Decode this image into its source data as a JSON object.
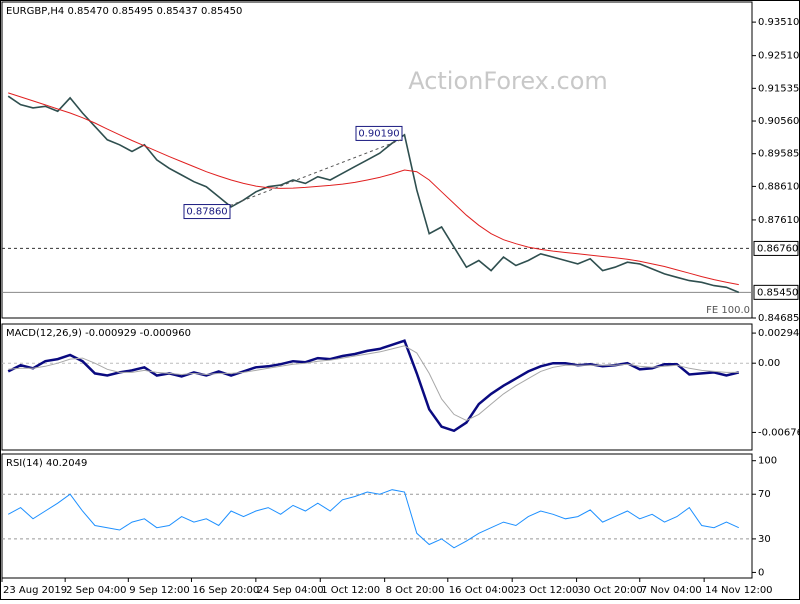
{
  "chart_data": [
    {
      "type": "line",
      "title": "EURGBP,H4  0.85470 0.85495 0.85437 0.85450",
      "watermark": "ActionForex.com",
      "ylim": [
        0.84685,
        0.9411
      ],
      "yticks": [
        {
          "value": 0.9351,
          "label": "0.93510"
        },
        {
          "value": 0.9251,
          "label": "0.92510"
        },
        {
          "value": 0.91535,
          "label": "0.91535"
        },
        {
          "value": 0.9056,
          "label": "0.90560"
        },
        {
          "value": 0.89585,
          "label": "0.89585"
        },
        {
          "value": 0.8861,
          "label": "0.88610"
        },
        {
          "value": 0.8761,
          "label": "0.87610"
        },
        {
          "value": 0.84685,
          "label": "0.84685"
        }
      ],
      "hlines": [
        {
          "value": 0.8676,
          "label": "0.86760",
          "style": "dashed"
        },
        {
          "value": 0.8545,
          "label": "0.85450",
          "style": "solid"
        }
      ],
      "annotations": [
        {
          "text": "0.90190",
          "value": 0.9019
        },
        {
          "text": "0.87860",
          "value": 0.8786
        }
      ],
      "note": "FE 100.0",
      "series": [
        {
          "color": "#2f4f4f",
          "values": [
            0.913,
            0.9105,
            0.9095,
            0.91,
            0.9085,
            0.9125,
            0.908,
            0.904,
            0.9,
            0.8985,
            0.8965,
            0.8985,
            0.894,
            0.8915,
            0.8895,
            0.8875,
            0.886,
            0.883,
            0.88,
            0.882,
            0.8845,
            0.886,
            0.8865,
            0.888,
            0.887,
            0.889,
            0.888,
            0.89,
            0.892,
            0.894,
            0.896,
            0.899,
            0.9015,
            0.885,
            0.872,
            0.874,
            0.868,
            0.862,
            0.864,
            0.861,
            0.865,
            0.8625,
            0.864,
            0.866,
            0.865,
            0.864,
            0.863,
            0.8645,
            0.861,
            0.862,
            0.8635,
            0.863,
            0.8615,
            0.86,
            0.859,
            0.858,
            0.8575,
            0.8565,
            0.856,
            0.8545
          ]
        },
        {
          "color": "#e02020",
          "values": [
            0.914,
            0.9128,
            0.9116,
            0.9104,
            0.9092,
            0.908,
            0.9066,
            0.905,
            0.9032,
            0.9015,
            0.8998,
            0.8982,
            0.8966,
            0.895,
            0.8935,
            0.892,
            0.8905,
            0.8892,
            0.888,
            0.887,
            0.8862,
            0.8857,
            0.8855,
            0.8856,
            0.8858,
            0.8861,
            0.8864,
            0.8868,
            0.8873,
            0.888,
            0.8888,
            0.8898,
            0.891,
            0.8905,
            0.888,
            0.8845,
            0.881,
            0.8775,
            0.8745,
            0.872,
            0.8702,
            0.869,
            0.868,
            0.8673,
            0.8668,
            0.8664,
            0.866,
            0.8656,
            0.8652,
            0.8648,
            0.8644,
            0.8638,
            0.863,
            0.8622,
            0.8612,
            0.8602,
            0.8592,
            0.8583,
            0.8575,
            0.8568
          ]
        }
      ]
    },
    {
      "type": "line",
      "title": "MACD(12,26,9) -0.000929 -0.000960",
      "ylim": [
        -0.00848,
        0.00383
      ],
      "yticks": [
        0.002942,
        {
          "value": 0,
          "label": "0.00"
        },
        -0.006761
      ],
      "series": [
        {
          "color": "#0a0a80",
          "values": [
            -0.0008,
            -0.0002,
            -0.0005,
            0.0002,
            0.0004,
            0.0008,
            0.0002,
            -0.001,
            -0.0012,
            -0.0009,
            -0.0007,
            -0.0004,
            -0.0012,
            -0.001,
            -0.0013,
            -0.0009,
            -0.0012,
            -0.0008,
            -0.0012,
            -0.0008,
            -0.0004,
            -0.0003,
            -0.0001,
            0.0002,
            0.0001,
            0.0005,
            0.0004,
            0.0007,
            0.0009,
            0.0012,
            0.0014,
            0.0018,
            0.0022,
            -0.001,
            -0.0045,
            -0.0062,
            -0.0066,
            -0.0058,
            -0.004,
            -0.003,
            -0.0022,
            -0.0015,
            -0.0008,
            -0.0003,
            0.0,
            0.0,
            -0.0002,
            -0.0001,
            -0.0003,
            -0.0002,
            0.0,
            -0.0006,
            -0.0005,
            -0.0001,
            -0.0001,
            -0.0011,
            -0.001,
            -0.0009,
            -0.0012,
            -0.0009
          ]
        },
        {
          "color": "#a8a8a8",
          "values": [
            -0.0006,
            -0.0005,
            -0.0005,
            -0.0003,
            0.0,
            0.0004,
            0.0005,
            0.0,
            -0.0006,
            -0.0009,
            -0.0009,
            -0.0007,
            -0.0009,
            -0.001,
            -0.0011,
            -0.001,
            -0.0011,
            -0.001,
            -0.001,
            -0.0009,
            -0.0007,
            -0.0005,
            -0.0003,
            -0.0001,
            0.0,
            0.0002,
            0.0003,
            0.0005,
            0.0007,
            0.0009,
            0.0011,
            0.0014,
            0.0017,
            0.001,
            -0.001,
            -0.0035,
            -0.005,
            -0.0056,
            -0.005,
            -0.004,
            -0.003,
            -0.0022,
            -0.0015,
            -0.0008,
            -0.0004,
            -0.0002,
            -0.0002,
            -0.0002,
            -0.0002,
            -0.0002,
            -0.0001,
            -0.0003,
            -0.0004,
            -0.0003,
            -0.0002,
            -0.0005,
            -0.0007,
            -0.0008,
            -0.0009,
            -0.0009
          ]
        }
      ]
    },
    {
      "type": "line",
      "title": "RSI(14) 40.2049",
      "ylim": [
        -5,
        106
      ],
      "yticks": [
        100,
        70,
        30,
        0
      ],
      "xlim": [
        -0.5,
        59.5
      ],
      "xticks": [
        {
          "value": -0.5,
          "label": "23 Aug 2019"
        },
        {
          "value": 4.6,
          "label": "2 Sep 04:00"
        },
        {
          "value": 9.7,
          "label": "9 Sep 12:00"
        },
        {
          "value": 14.8,
          "label": "16 Sep 20:00"
        },
        {
          "value": 20.0,
          "label": "24 Sep 04:00"
        },
        {
          "value": 25.2,
          "label": "1 Oct 12:00"
        },
        {
          "value": 30.4,
          "label": "8 Oct 20:00"
        },
        {
          "value": 35.5,
          "label": "16 Oct 04:00"
        },
        {
          "value": 40.7,
          "label": "23 Oct 12:00"
        },
        {
          "value": 45.9,
          "label": "30 Oct 20:00"
        },
        {
          "value": 51.0,
          "label": "7 Nov 04:00"
        },
        {
          "value": 56.2,
          "label": "14 Nov 12:00"
        }
      ],
      "series": [
        {
          "color": "#1e90ff",
          "values": [
            52,
            58,
            48,
            55,
            62,
            70,
            55,
            42,
            40,
            38,
            45,
            48,
            40,
            42,
            50,
            45,
            48,
            42,
            55,
            50,
            55,
            58,
            52,
            60,
            55,
            62,
            55,
            65,
            68,
            72,
            70,
            74,
            72,
            35,
            25,
            30,
            22,
            28,
            35,
            40,
            45,
            42,
            50,
            55,
            52,
            48,
            50,
            56,
            45,
            50,
            55,
            48,
            52,
            45,
            50,
            58,
            42,
            40,
            45,
            40
          ]
        }
      ]
    }
  ]
}
